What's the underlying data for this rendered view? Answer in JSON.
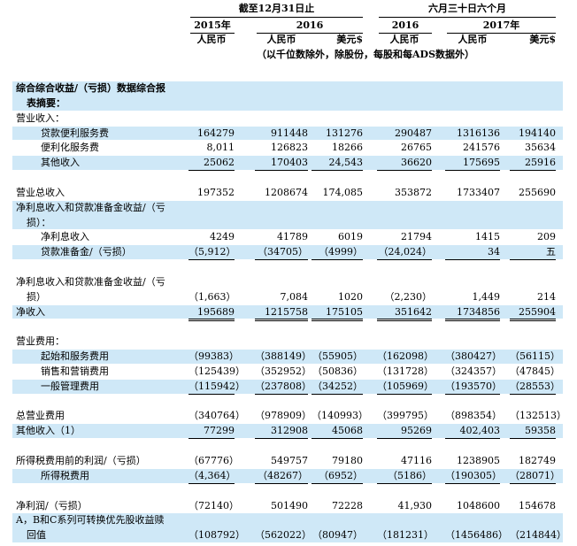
{
  "header": {
    "groups": [
      "截至12月31日止",
      "六月三十日六个月"
    ],
    "years": [
      "2015年",
      "2016",
      "2016",
      "2017年"
    ],
    "currencies": [
      "人民币",
      "人民币",
      "美元$",
      "人民币",
      "人民币",
      "美元$"
    ],
    "note": "（以千位数除外，除股份，每股和每ADS数据外）"
  },
  "table": {
    "rows": [
      {
        "label": [
          "综合综合收益/（亏损）数据综合报",
          "表摘要："
        ]
      },
      {
        "label": [
          "营业收入："
        ]
      },
      {
        "label": [
          "贷款便利服务费"
        ],
        "values": [
          "164279",
          "911448",
          "131276",
          "290487",
          "1316136",
          "194140"
        ]
      },
      {
        "label": [
          "便利化服务费"
        ],
        "values": [
          "8,011",
          "126823",
          "18266",
          "26765",
          "241576",
          "35634"
        ]
      },
      {
        "label": [
          "其他收入"
        ],
        "values": [
          "25062",
          "170403",
          "24,543",
          "36620",
          "175695",
          "25916"
        ]
      },
      {
        "label": [
          "营业总收入"
        ],
        "values": [
          "197352",
          "1208674",
          "174,085",
          "353872",
          "1733407",
          "255690"
        ]
      },
      {
        "label": [
          "净利息收入和贷款准备金收益/（亏",
          "损）："
        ]
      },
      {
        "label": [
          "净利息收入"
        ],
        "values": [
          "4249",
          "41789",
          "6019",
          "21794",
          "1415",
          "209"
        ]
      },
      {
        "label": [
          "贷款准备金/（亏损）"
        ],
        "values": [
          "（5,912）",
          "（34705）",
          "（4999）",
          "（24,024）",
          "34",
          "五"
        ]
      },
      {
        "label": [
          "净利息收入和贷款准备金收益/（亏",
          "损）"
        ],
        "values": [
          "（1,663）",
          "7,084",
          "1020",
          "（2,230）",
          "1,449",
          "214"
        ]
      },
      {
        "label": [
          "净收入"
        ],
        "values": [
          "195689",
          "1215758",
          "175105",
          "351642",
          "1734856",
          "255904"
        ]
      },
      {
        "label": [
          "营业费用："
        ]
      },
      {
        "label": [
          "起始和服务费用"
        ],
        "values": [
          "（99383）",
          "（388149）",
          "（55905）",
          "（162098）",
          "（380427）",
          "（56115）"
        ]
      },
      {
        "label": [
          "销售和营销费用"
        ],
        "values": [
          "（125439）",
          "（352952）",
          "（50836）",
          "（131728）",
          "（324357）",
          "（47845）"
        ]
      },
      {
        "label": [
          "一般管理费用"
        ],
        "values": [
          "（115942）",
          "（237808）",
          "（34252）",
          "（105969）",
          "（193570）",
          "（28553）"
        ]
      },
      {
        "label": [
          "总营业费用"
        ],
        "values": [
          "（340764）",
          "（978909）",
          "（140993）",
          "（399795）",
          "（898354）",
          "（132513）"
        ]
      },
      {
        "label": [
          "其他收入（1）"
        ],
        "values": [
          "77299",
          "312908",
          "45068",
          "95269",
          "402,403",
          "59358"
        ]
      },
      {
        "label": [
          "所得税费用前的利润/（亏损）"
        ],
        "values": [
          "（67776）",
          "549757",
          "79180",
          "47116",
          "1238905",
          "182749"
        ]
      },
      {
        "label": [
          "所得税费用"
        ],
        "values": [
          "（4,364）",
          "（48267）",
          "（6952）",
          "（5186）",
          "（190305）",
          "（28071）"
        ]
      },
      {
        "label": [
          "净利润/（亏损）"
        ],
        "values": [
          "（72140）",
          "501490",
          "72228",
          "41,930",
          "1048600",
          "154678"
        ]
      },
      {
        "label": [
          "A，B和C系列可转换优先股收益赎",
          "回值"
        ],
        "values": [
          "（108792）",
          "（562022）",
          "（80947）",
          "（181231）",
          "（1456486）",
          "（214844）"
        ]
      }
    ]
  }
}
